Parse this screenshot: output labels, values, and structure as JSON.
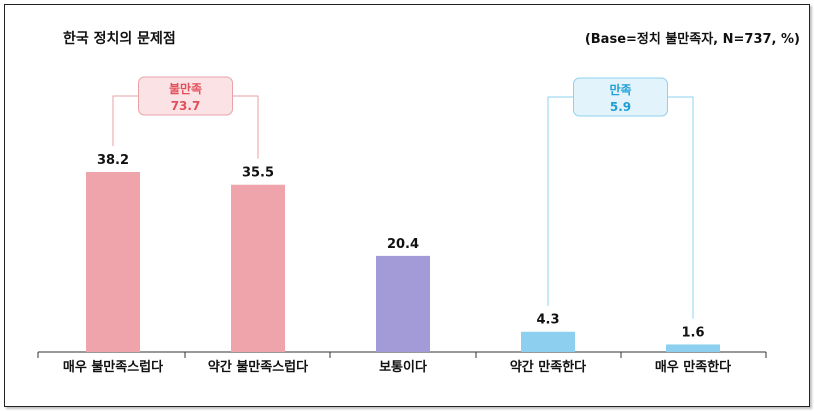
{
  "header": {
    "title": "한국 정치의 문제점",
    "base_note": "(Base=정치 불만족자, N=737, %)"
  },
  "groups": [
    {
      "label": "불만족",
      "value": "73.7",
      "color": "#e0505a",
      "box_fill": "#fbe3e5",
      "box_stroke": "#e9a2a8",
      "line": "#e9a2a8"
    },
    {
      "label": "만족",
      "value": "5.9",
      "color": "#1f9fd6",
      "box_fill": "#e3f3fb",
      "box_stroke": "#8fd0ee",
      "line": "#8fd0ee"
    }
  ],
  "chart_data": {
    "type": "bar",
    "title": "한국 정치의 문제점",
    "categories": [
      "매우 불만족스럽다",
      "약간 불만족스럽다",
      "보통이다",
      "약간 만족한다",
      "매우 만족한다"
    ],
    "values": [
      38.2,
      35.5,
      20.4,
      4.3,
      1.6
    ],
    "value_labels": [
      "38.2",
      "35.5",
      "20.4",
      "4.3",
      "1.6"
    ],
    "colors": [
      "#efa3aa",
      "#efa3aa",
      "#a39ad8",
      "#8dcfef",
      "#8dcfef"
    ],
    "xlabel": "",
    "ylabel": "",
    "ylim": [
      0,
      40
    ],
    "grid": false
  }
}
